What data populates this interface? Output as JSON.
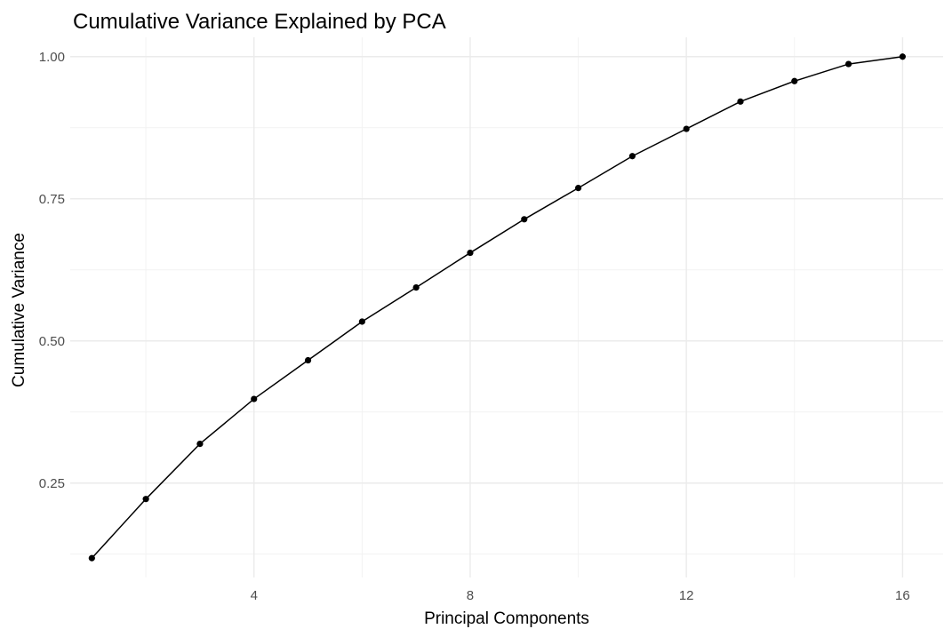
{
  "chart_data": {
    "type": "line",
    "title": "Cumulative Variance Explained by PCA",
    "xlabel": "Principal Components",
    "ylabel": "Cumulative Variance",
    "x": [
      1,
      2,
      3,
      4,
      5,
      6,
      7,
      8,
      9,
      10,
      11,
      12,
      13,
      14,
      15,
      16
    ],
    "series": [
      {
        "values": [
          0.118,
          0.222,
          0.319,
          0.398,
          0.466,
          0.534,
          0.594,
          0.655,
          0.714,
          0.769,
          0.825,
          0.873,
          0.921,
          0.957,
          0.987,
          1.0
        ]
      }
    ],
    "xlim": [
      0.6,
      16.75
    ],
    "ylim": [
      0.084,
      1.034
    ],
    "x_ticks": [
      4,
      8,
      12,
      16
    ],
    "x_tick_labels": [
      "4",
      "8",
      "12",
      "16"
    ],
    "y_ticks": [
      0.25,
      0.5,
      0.75,
      1.0
    ],
    "y_tick_labels": [
      "0.25",
      "0.50",
      "0.75",
      "1.00"
    ],
    "x_minor_ticks": [
      2,
      6,
      10,
      14
    ],
    "y_minor_ticks": [
      0.125,
      0.375,
      0.625,
      0.875
    ],
    "grid": true,
    "legend": "none",
    "colors": {
      "series": "#000000",
      "grid_major": "#ebebeb",
      "grid_minor": "#f2f2f2",
      "tick_text": "#4d4d4d"
    }
  }
}
